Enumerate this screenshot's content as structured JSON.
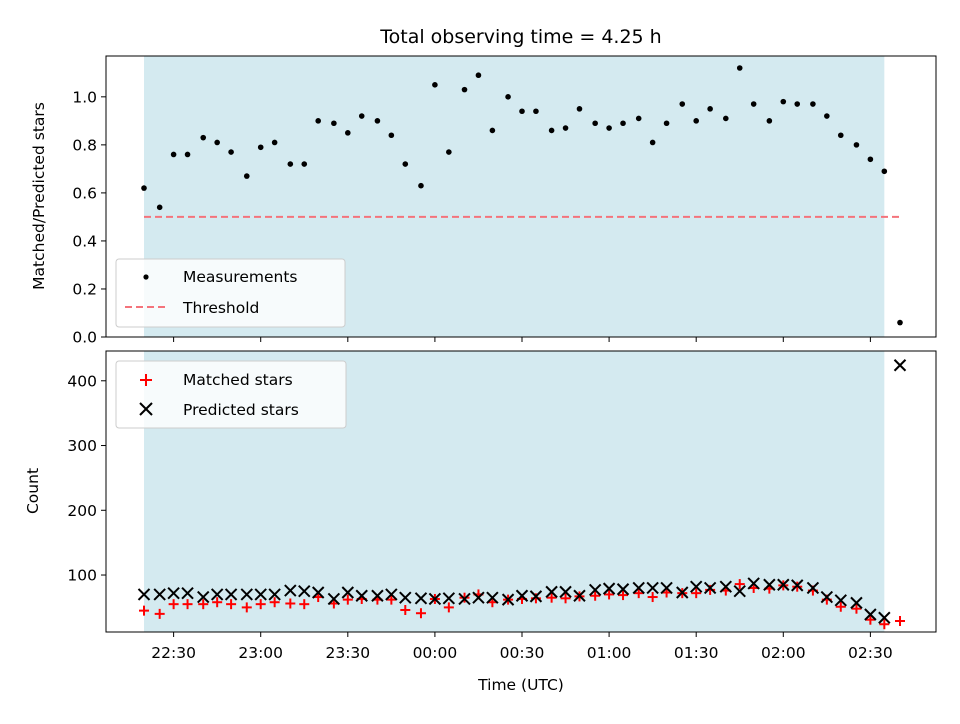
{
  "chart_data": [
    {
      "type": "scatter",
      "title": "Total observing time = 4.25 h",
      "xlabel": "",
      "ylabel": "Matched/Predicted stars",
      "ylim": [
        0,
        1.17
      ],
      "yticks": [
        "0.0",
        "0.2",
        "0.4",
        "0.6",
        "0.8",
        "1.0"
      ],
      "shaded_x_range_hours": [
        22.33,
        26.58
      ],
      "threshold": 0.5,
      "threshold_color": "#f4737b",
      "shade_color": "#d4eaf0",
      "legend": {
        "placement": "lower-left",
        "entries": [
          "Measurements",
          "Threshold"
        ]
      },
      "series": [
        {
          "name": "Measurements",
          "color": "#000000",
          "x_hours": [
            22.33,
            22.42,
            22.5,
            22.58,
            22.67,
            22.75,
            22.83,
            22.92,
            23.0,
            23.08,
            23.17,
            23.25,
            23.33,
            23.42,
            23.5,
            23.58,
            23.67,
            23.75,
            23.83,
            23.92,
            24.0,
            24.08,
            24.17,
            24.25,
            24.33,
            24.42,
            24.5,
            24.58,
            24.67,
            24.75,
            24.83,
            24.92,
            25.0,
            25.08,
            25.17,
            25.25,
            25.33,
            25.42,
            25.5,
            25.58,
            25.67,
            25.75,
            25.83,
            25.92,
            26.0,
            26.08,
            26.17,
            26.25,
            26.33,
            26.42,
            26.5,
            26.58,
            26.67
          ],
          "values": [
            0.62,
            0.54,
            0.76,
            0.76,
            0.83,
            0.81,
            0.77,
            0.67,
            0.79,
            0.81,
            0.72,
            0.72,
            0.9,
            0.89,
            0.85,
            0.92,
            0.9,
            0.84,
            0.72,
            0.63,
            1.05,
            0.77,
            1.03,
            1.09,
            0.86,
            1.0,
            0.94,
            0.94,
            0.86,
            0.87,
            0.95,
            0.89,
            0.87,
            0.89,
            0.91,
            0.81,
            0.89,
            0.97,
            0.9,
            0.95,
            0.91,
            1.12,
            0.97,
            0.9,
            0.98,
            0.97,
            0.97,
            0.92,
            0.84,
            0.8,
            0.74,
            0.69,
            0.06
          ]
        },
        {
          "name": "Threshold",
          "color": "#f4737b",
          "x_hours": [
            22.33,
            26.67
          ],
          "values": [
            0.5,
            0.5
          ]
        }
      ]
    },
    {
      "type": "scatter",
      "xlabel": "Time (UTC)",
      "ylabel": "Count",
      "ylim": [
        12,
        446
      ],
      "yticks": [
        "100",
        "200",
        "300",
        "400"
      ],
      "xticks": [
        "22:30",
        "23:00",
        "23:30",
        "00:00",
        "00:30",
        "01:00",
        "01:30",
        "02:00",
        "02:30"
      ],
      "shaded_x_range_hours": [
        22.33,
        26.58
      ],
      "shade_color": "#d4eaf0",
      "legend": {
        "placement": "top-left",
        "entries": [
          "Matched stars",
          "Predicted stars"
        ]
      },
      "series": [
        {
          "name": "Matched stars",
          "color": "#ff0000",
          "x_hours": [
            22.33,
            22.42,
            22.5,
            22.58,
            22.67,
            22.75,
            22.83,
            22.92,
            23.0,
            23.08,
            23.17,
            23.25,
            23.33,
            23.42,
            23.5,
            23.58,
            23.67,
            23.75,
            23.83,
            23.92,
            24.0,
            24.08,
            24.17,
            24.25,
            24.33,
            24.42,
            24.5,
            24.58,
            24.67,
            24.75,
            24.83,
            24.92,
            25.0,
            25.08,
            25.17,
            25.25,
            25.33,
            25.42,
            25.5,
            25.58,
            25.67,
            25.75,
            25.83,
            25.92,
            26.0,
            26.08,
            26.17,
            26.25,
            26.33,
            26.42,
            26.5,
            26.58,
            26.67
          ],
          "values": [
            45,
            40,
            55,
            55,
            55,
            58,
            55,
            50,
            55,
            58,
            56,
            55,
            66,
            56,
            62,
            63,
            62,
            62,
            46,
            41,
            63,
            50,
            65,
            70,
            58,
            62,
            63,
            64,
            65,
            64,
            67,
            68,
            70,
            69,
            72,
            66,
            73,
            72,
            72,
            77,
            76,
            86,
            80,
            79,
            84,
            82,
            76,
            62,
            51,
            48,
            31,
            24,
            29
          ]
        },
        {
          "name": "Predicted stars",
          "color": "#000000",
          "x_hours": [
            22.33,
            22.42,
            22.5,
            22.58,
            22.67,
            22.75,
            22.83,
            22.92,
            23.0,
            23.08,
            23.17,
            23.25,
            23.33,
            23.42,
            23.5,
            23.58,
            23.67,
            23.75,
            23.83,
            23.92,
            24.0,
            24.08,
            24.17,
            24.25,
            24.33,
            24.42,
            24.5,
            24.58,
            24.67,
            24.75,
            24.83,
            24.92,
            25.0,
            25.08,
            25.17,
            25.25,
            25.33,
            25.42,
            25.5,
            25.58,
            25.67,
            25.75,
            25.83,
            25.92,
            26.0,
            26.08,
            26.17,
            26.25,
            26.33,
            26.42,
            26.5,
            26.58,
            26.67
          ],
          "values": [
            70,
            70,
            72,
            72,
            66,
            70,
            70,
            70,
            70,
            70,
            76,
            75,
            73,
            63,
            73,
            68,
            68,
            70,
            65,
            64,
            63,
            64,
            63,
            65,
            65,
            62,
            68,
            67,
            74,
            74,
            68,
            77,
            79,
            78,
            80,
            80,
            80,
            73,
            82,
            80,
            82,
            75,
            87,
            85,
            85,
            84,
            80,
            66,
            61,
            57,
            39,
            34,
            424
          ]
        }
      ]
    }
  ]
}
